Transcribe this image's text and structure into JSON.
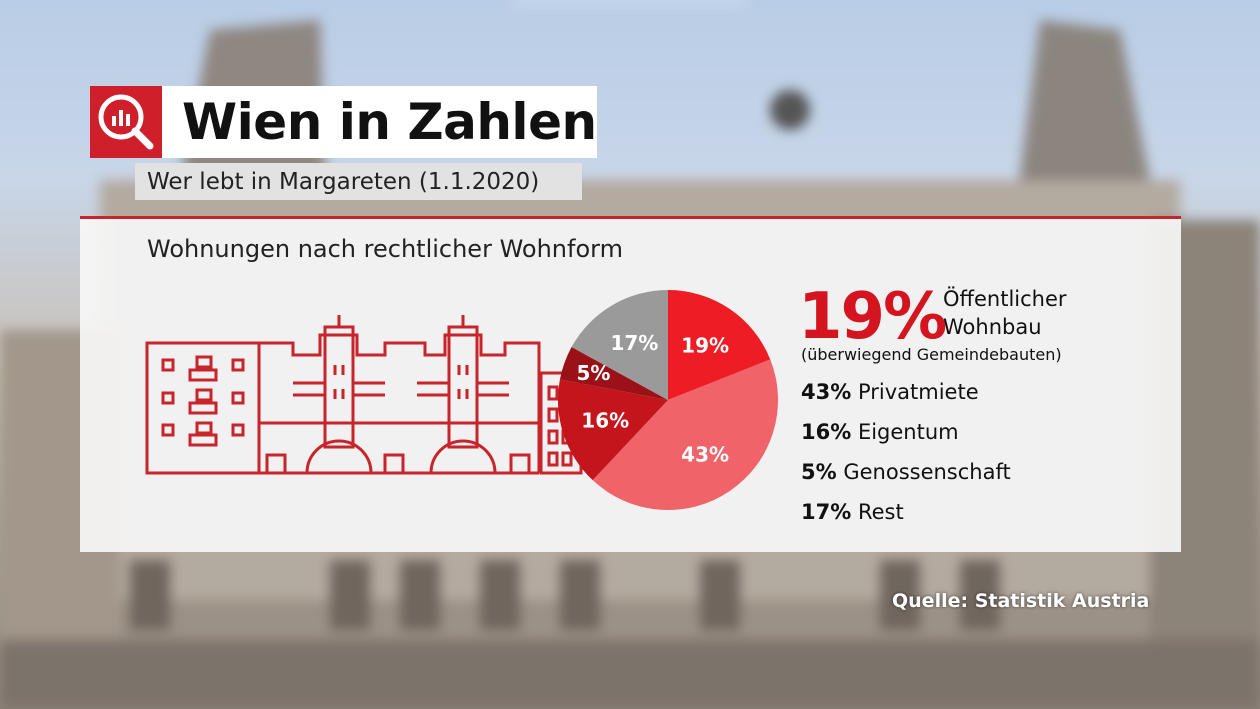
{
  "header": {
    "title": "Wien in Zahlen",
    "subtitle": "Wer lebt in Margareten (1.1.2020)",
    "logo_icon": "magnifier-chart-icon"
  },
  "panel": {
    "heading": "Wohnungen nach rechtlicher Wohnform",
    "illustration_icon": "municipal-housing-building-icon"
  },
  "highlight": {
    "percent": "19%",
    "label_line1": "Öffentlicher",
    "label_line2": "Wohnbau",
    "note": "(überwiegend Gemeindebauten)"
  },
  "legend": [
    {
      "pct": "43%",
      "label": "Privatmiete"
    },
    {
      "pct": "16%",
      "label": "Eigentum"
    },
    {
      "pct": "5%",
      "label": "Genossenschaft"
    },
    {
      "pct": "17%",
      "label": "Rest"
    }
  ],
  "source": "Quelle: Statistik Austria",
  "colors": {
    "brand_red": "#cf1f2a",
    "slice_public": "#ee1c24",
    "slice_private": "#f06368",
    "slice_owner": "#c4141c",
    "slice_coop": "#9a1118",
    "slice_rest": "#9a9a9a"
  },
  "chart_data": {
    "type": "pie",
    "title": "Wohnungen nach rechtlicher Wohnform",
    "slices": [
      {
        "label": "Öffentlicher Wohnbau",
        "value": 19,
        "display": "19%",
        "color": "#ee1c24"
      },
      {
        "label": "Privatmiete",
        "value": 43,
        "display": "43%",
        "color": "#f06368"
      },
      {
        "label": "Eigentum",
        "value": 16,
        "display": "16%",
        "color": "#c4141c"
      },
      {
        "label": "Genossenschaft",
        "value": 5,
        "display": "5%",
        "color": "#9a1118"
      },
      {
        "label": "Rest",
        "value": 17,
        "display": "17%",
        "color": "#9a9a9a"
      }
    ]
  }
}
